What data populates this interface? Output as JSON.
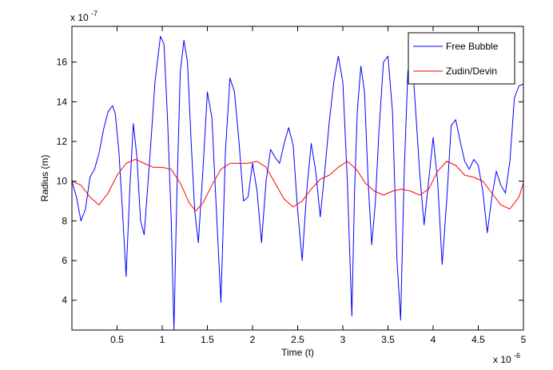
{
  "chart_data": {
    "type": "line",
    "xlabel": "Time (t)",
    "ylabel": "Radius (m)",
    "x_exponent_label": "x 10",
    "x_exponent_power": "-6",
    "y_exponent_label": "x 10",
    "y_exponent_power": "-7",
    "xlim": [
      0,
      5
    ],
    "ylim": [
      2.5,
      17.8
    ],
    "x_ticks": [
      0.5,
      1,
      1.5,
      2,
      2.5,
      3,
      3.5,
      4,
      4.5,
      5
    ],
    "x_tick_labels": [
      "0.5",
      "1",
      "1.5",
      "2",
      "2.5",
      "3",
      "3.5",
      "4",
      "4.5",
      "5"
    ],
    "y_ticks": [
      4,
      6,
      8,
      10,
      12,
      14,
      16
    ],
    "y_tick_labels": [
      "4",
      "6",
      "8",
      "10",
      "12",
      "14",
      "16"
    ],
    "grid": false,
    "legend_position": "top-right",
    "series": [
      {
        "name": "Free Bubble",
        "color": "#0000ff",
        "x": [
          0,
          0.05,
          0.1,
          0.15,
          0.2,
          0.25,
          0.3,
          0.35,
          0.4,
          0.45,
          0.48,
          0.52,
          0.56,
          0.6,
          0.64,
          0.68,
          0.72,
          0.76,
          0.8,
          0.86,
          0.92,
          0.98,
          1.02,
          1.06,
          1.1,
          1.13,
          1.16,
          1.2,
          1.24,
          1.28,
          1.32,
          1.36,
          1.4,
          1.45,
          1.5,
          1.55,
          1.6,
          1.65,
          1.7,
          1.75,
          1.8,
          1.85,
          1.9,
          1.95,
          2.0,
          2.05,
          2.1,
          2.15,
          2.2,
          2.25,
          2.3,
          2.35,
          2.4,
          2.45,
          2.5,
          2.55,
          2.6,
          2.65,
          2.7,
          2.75,
          2.8,
          2.85,
          2.9,
          2.95,
          3.0,
          3.05,
          3.1,
          3.13,
          3.16,
          3.2,
          3.24,
          3.28,
          3.32,
          3.36,
          3.4,
          3.45,
          3.5,
          3.55,
          3.6,
          3.64,
          3.68,
          3.72,
          3.76,
          3.8,
          3.85,
          3.9,
          3.95,
          4.0,
          4.05,
          4.1,
          4.15,
          4.2,
          4.25,
          4.3,
          4.35,
          4.4,
          4.45,
          4.5,
          4.55,
          4.6,
          4.65,
          4.7,
          4.75,
          4.8,
          4.85,
          4.9,
          4.95,
          5.0
        ],
        "y": [
          10.0,
          9.2,
          8.0,
          8.6,
          10.2,
          10.6,
          11.4,
          12.6,
          13.5,
          13.8,
          13.4,
          11.5,
          8.5,
          5.2,
          9.5,
          12.9,
          11.2,
          8.0,
          7.3,
          11.0,
          15.0,
          17.3,
          16.9,
          13.0,
          8.0,
          2.5,
          9.0,
          15.5,
          17.1,
          16.0,
          12.0,
          8.5,
          6.9,
          10.5,
          14.5,
          13.2,
          8.5,
          3.9,
          11.5,
          15.2,
          14.5,
          12.0,
          9.0,
          9.2,
          10.9,
          9.5,
          6.9,
          10.0,
          11.6,
          11.2,
          10.9,
          11.9,
          12.7,
          11.8,
          8.5,
          6.0,
          9.5,
          11.9,
          10.5,
          8.2,
          10.5,
          13.0,
          15.0,
          16.3,
          15.0,
          10.0,
          3.2,
          9.5,
          13.5,
          15.8,
          14.5,
          10.0,
          6.8,
          8.9,
          12.5,
          16.0,
          16.3,
          13.5,
          6.0,
          3.0,
          10.5,
          15.5,
          16.7,
          14.0,
          10.5,
          7.8,
          10.0,
          12.2,
          10.0,
          5.8,
          9.0,
          12.8,
          13.1,
          12.0,
          11.0,
          10.6,
          11.1,
          10.8,
          9.5,
          7.4,
          9.2,
          10.5,
          9.8,
          9.4,
          11.0,
          14.2,
          14.8,
          14.9
        ]
      },
      {
        "name": "Zudin/Devin",
        "color": "#ff0000",
        "x": [
          0,
          0.1,
          0.2,
          0.3,
          0.4,
          0.5,
          0.6,
          0.7,
          0.8,
          0.9,
          1.0,
          1.1,
          1.2,
          1.3,
          1.37,
          1.45,
          1.55,
          1.65,
          1.75,
          1.85,
          1.95,
          2.05,
          2.15,
          2.25,
          2.35,
          2.45,
          2.55,
          2.65,
          2.75,
          2.85,
          2.95,
          3.05,
          3.15,
          3.25,
          3.35,
          3.45,
          3.55,
          3.65,
          3.75,
          3.85,
          3.95,
          4.05,
          4.15,
          4.25,
          4.35,
          4.45,
          4.55,
          4.65,
          4.75,
          4.85,
          4.95,
          5.0
        ],
        "y": [
          10.0,
          9.8,
          9.2,
          8.8,
          9.4,
          10.3,
          10.9,
          11.1,
          10.9,
          10.7,
          10.7,
          10.6,
          9.9,
          8.9,
          8.5,
          8.9,
          9.8,
          10.6,
          10.9,
          10.9,
          10.9,
          11.0,
          10.7,
          9.9,
          9.1,
          8.7,
          9.0,
          9.6,
          10.1,
          10.3,
          10.7,
          11.0,
          10.6,
          9.9,
          9.5,
          9.3,
          9.5,
          9.6,
          9.5,
          9.3,
          9.6,
          10.5,
          11.0,
          10.8,
          10.3,
          10.2,
          10.0,
          9.4,
          8.8,
          8.6,
          9.2,
          9.9
        ]
      }
    ]
  }
}
